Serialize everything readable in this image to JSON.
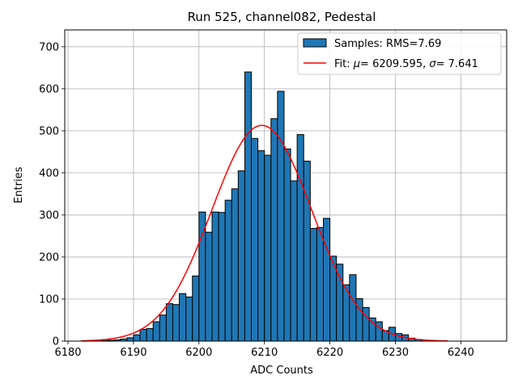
{
  "chart_data": {
    "type": "bar",
    "title": "Run 525, channel082, Pedestal",
    "xlabel": "ADC Counts",
    "ylabel": "Entries",
    "xlim": [
      6179.5,
      6247
    ],
    "ylim": [
      0,
      740
    ],
    "xticks": [
      6180,
      6190,
      6200,
      6210,
      6220,
      6230,
      6240
    ],
    "yticks": [
      0,
      100,
      200,
      300,
      400,
      500,
      600,
      700
    ],
    "grid": true,
    "legend_position": "top-right",
    "colors": {
      "bars": "#1f77b4",
      "bar_edge": "#000000",
      "fit": "#ff0000",
      "grid": "#b0b0b0"
    },
    "histogram": {
      "name": "Samples: RMS=7.69",
      "bin_width": 1,
      "bins": [
        {
          "x": 6182,
          "count": 0
        },
        {
          "x": 6183,
          "count": 0
        },
        {
          "x": 6184,
          "count": 0
        },
        {
          "x": 6185,
          "count": 1
        },
        {
          "x": 6186,
          "count": 2
        },
        {
          "x": 6187,
          "count": 3
        },
        {
          "x": 6188,
          "count": 5
        },
        {
          "x": 6189,
          "count": 8
        },
        {
          "x": 6190,
          "count": 15
        },
        {
          "x": 6191,
          "count": 28
        },
        {
          "x": 6192,
          "count": 30
        },
        {
          "x": 6193,
          "count": 46
        },
        {
          "x": 6194,
          "count": 62
        },
        {
          "x": 6195,
          "count": 89
        },
        {
          "x": 6196,
          "count": 87
        },
        {
          "x": 6197,
          "count": 113
        },
        {
          "x": 6198,
          "count": 105
        },
        {
          "x": 6199,
          "count": 155
        },
        {
          "x": 6200,
          "count": 307
        },
        {
          "x": 6201,
          "count": 259
        },
        {
          "x": 6202,
          "count": 307
        },
        {
          "x": 6203,
          "count": 306
        },
        {
          "x": 6204,
          "count": 335
        },
        {
          "x": 6205,
          "count": 362
        },
        {
          "x": 6206,
          "count": 405
        },
        {
          "x": 6207,
          "count": 640
        },
        {
          "x": 6208,
          "count": 482
        },
        {
          "x": 6209,
          "count": 453
        },
        {
          "x": 6210,
          "count": 442
        },
        {
          "x": 6211,
          "count": 529
        },
        {
          "x": 6212,
          "count": 594
        },
        {
          "x": 6213,
          "count": 457
        },
        {
          "x": 6214,
          "count": 381
        },
        {
          "x": 6215,
          "count": 491
        },
        {
          "x": 6216,
          "count": 428
        },
        {
          "x": 6217,
          "count": 268
        },
        {
          "x": 6218,
          "count": 270
        },
        {
          "x": 6219,
          "count": 292
        },
        {
          "x": 6220,
          "count": 202
        },
        {
          "x": 6221,
          "count": 183
        },
        {
          "x": 6222,
          "count": 134
        },
        {
          "x": 6223,
          "count": 158
        },
        {
          "x": 6224,
          "count": 101
        },
        {
          "x": 6225,
          "count": 80
        },
        {
          "x": 6226,
          "count": 55
        },
        {
          "x": 6227,
          "count": 46
        },
        {
          "x": 6228,
          "count": 25
        },
        {
          "x": 6229,
          "count": 33
        },
        {
          "x": 6230,
          "count": 18
        },
        {
          "x": 6231,
          "count": 15
        },
        {
          "x": 6232,
          "count": 7
        },
        {
          "x": 6233,
          "count": 4
        },
        {
          "x": 6234,
          "count": 2
        },
        {
          "x": 6235,
          "count": 1
        },
        {
          "x": 6236,
          "count": 1
        },
        {
          "x": 6237,
          "count": 0
        },
        {
          "x": 6238,
          "count": 0
        }
      ]
    },
    "fit": {
      "name_prefix": "Fit: ",
      "mu_symbol": "μ",
      "sigma_symbol": "σ",
      "mu_value": "= 6209.595, ",
      "sigma_value": "= 7.641",
      "mean": 6209.595,
      "sigma": 7.641,
      "amplitude": 513,
      "x_range": [
        6182,
        6238
      ]
    }
  }
}
